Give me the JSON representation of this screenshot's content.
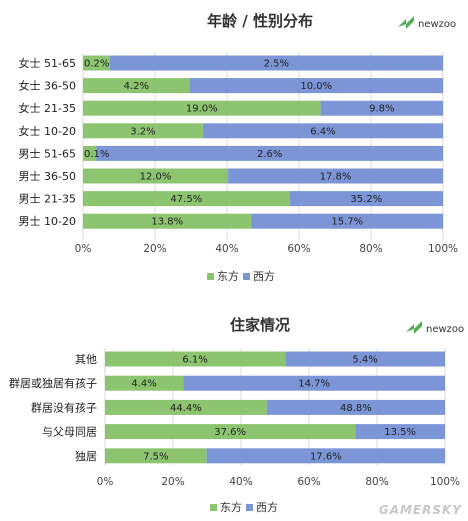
{
  "colors": {
    "east": "#8cc46f",
    "west": "#7c95d6",
    "grid": "#d9d9d9",
    "logo": "#4caf50"
  },
  "brand": {
    "logo_text": "newzoo",
    "watermark": "GAMERSKY"
  },
  "chart_data": [
    {
      "type": "bar",
      "orientation": "horizontal",
      "stacked": true,
      "title": "年龄 / 性别分布",
      "categories": [
        "女士 51-65",
        "女士 36-50",
        "女士 21-35",
        "女士 10-20",
        "男士 51-65",
        "男士 36-50",
        "男士 21-35",
        "男士 10-20"
      ],
      "series": [
        {
          "name": "东方",
          "values": [
            0.2,
            4.2,
            19.0,
            3.2,
            0.1,
            12.0,
            47.5,
            13.8
          ],
          "labels": [
            "0.2%",
            "4.2%",
            "19.0%",
            "3.2%",
            "0.1%",
            "12.0%",
            "47.5%",
            "13.8%"
          ]
        },
        {
          "name": "西方",
          "values": [
            2.5,
            10.0,
            9.8,
            6.4,
            2.6,
            17.8,
            35.2,
            15.7
          ],
          "labels": [
            "2.5%",
            "10.0%",
            "9.8%",
            "6.4%",
            "2.6%",
            "17.8%",
            "35.2%",
            "15.7%"
          ]
        }
      ],
      "share_of_bar": [
        0.074,
        0.296,
        0.66,
        0.333,
        0.037,
        0.403,
        0.574,
        0.468
      ],
      "xticks": [
        "0%",
        "20%",
        "40%",
        "60%",
        "80%",
        "100%"
      ],
      "xlim": [
        0,
        100
      ],
      "legend": "bottom",
      "grid": true
    },
    {
      "type": "bar",
      "orientation": "horizontal",
      "stacked": true,
      "title": "住家情况",
      "categories": [
        "其他",
        "群居或独居有孩子",
        "群居没有孩子",
        "与父母同居",
        "独居"
      ],
      "series": [
        {
          "name": "东方",
          "values": [
            6.1,
            4.4,
            44.4,
            37.6,
            7.5
          ],
          "labels": [
            "6.1%",
            "4.4%",
            "44.4%",
            "37.6%",
            "7.5%"
          ]
        },
        {
          "name": "西方",
          "values": [
            5.4,
            14.7,
            48.8,
            13.5,
            17.6
          ],
          "labels": [
            "5.4%",
            "14.7%",
            "48.8%",
            "13.5%",
            "17.6%"
          ]
        }
      ],
      "share_of_bar": [
        0.53,
        0.23,
        0.476,
        0.736,
        0.299
      ],
      "xticks": [
        "0%",
        "20%",
        "40%",
        "60%",
        "80%",
        "100%"
      ],
      "xlim": [
        0,
        100
      ],
      "legend": "bottom",
      "grid": true
    }
  ]
}
